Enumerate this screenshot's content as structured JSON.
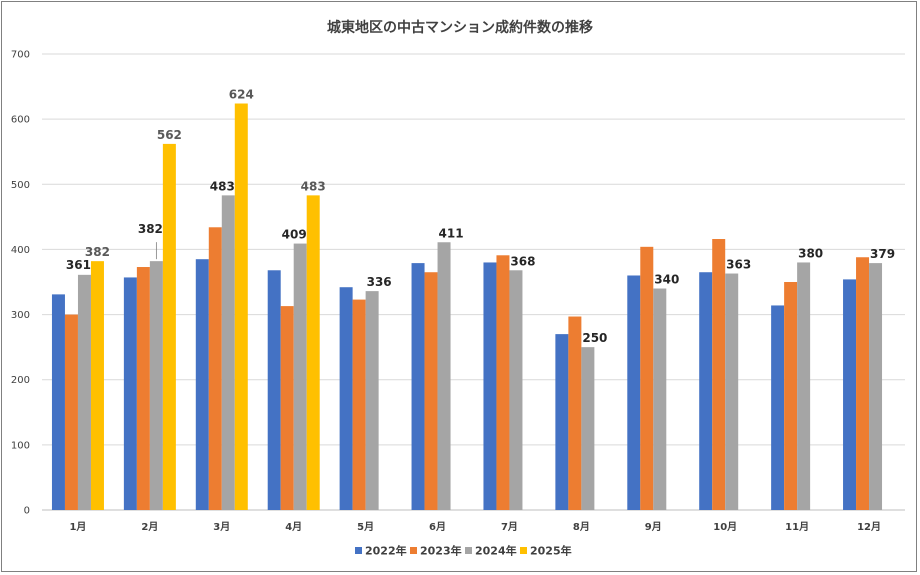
{
  "chart_data": {
    "type": "bar",
    "title": "城東地区の中古マンション成約件数の推移",
    "categories": [
      "1月",
      "2月",
      "3月",
      "4月",
      "5月",
      "6月",
      "7月",
      "8月",
      "9月",
      "10月",
      "11月",
      "12月"
    ],
    "yticks": [
      0,
      100,
      200,
      300,
      400,
      500,
      600,
      700
    ],
    "ylim": [
      0,
      700
    ],
    "grid": true,
    "legend_position": "bottom",
    "series": [
      {
        "name": "2022年",
        "color": "#4472C4",
        "values": [
          331,
          357,
          385,
          368,
          342,
          379,
          380,
          270,
          360,
          365,
          314,
          354
        ]
      },
      {
        "name": "2023年",
        "color": "#ED7D31",
        "values": [
          300,
          373,
          434,
          313,
          323,
          365,
          391,
          297,
          404,
          416,
          350,
          388
        ]
      },
      {
        "name": "2024年",
        "color": "#A5A5A5",
        "values": [
          361,
          382,
          483,
          409,
          336,
          411,
          368,
          250,
          340,
          363,
          380,
          379
        ]
      },
      {
        "name": "2025年",
        "color": "#FFC000",
        "values": [
          382,
          562,
          624,
          483,
          null,
          null,
          null,
          null,
          null,
          null,
          null,
          null
        ]
      }
    ],
    "data_labels": [
      {
        "series": 2,
        "category": 0,
        "text": "361"
      },
      {
        "series": 3,
        "category": 0,
        "text": "382"
      },
      {
        "series": 2,
        "category": 1,
        "text": "382"
      },
      {
        "series": 3,
        "category": 1,
        "text": "562"
      },
      {
        "series": 2,
        "category": 2,
        "text": "483"
      },
      {
        "series": 3,
        "category": 2,
        "text": "624"
      },
      {
        "series": 2,
        "category": 3,
        "text": "409"
      },
      {
        "series": 3,
        "category": 3,
        "text": "483"
      },
      {
        "series": 2,
        "category": 4,
        "text": "336"
      },
      {
        "series": 2,
        "category": 5,
        "text": "411"
      },
      {
        "series": 2,
        "category": 6,
        "text": "368"
      },
      {
        "series": 2,
        "category": 7,
        "text": "250"
      },
      {
        "series": 2,
        "category": 8,
        "text": "340"
      },
      {
        "series": 2,
        "category": 9,
        "text": "363"
      },
      {
        "series": 2,
        "category": 10,
        "text": "380"
      },
      {
        "series": 2,
        "category": 11,
        "text": "379"
      }
    ]
  }
}
